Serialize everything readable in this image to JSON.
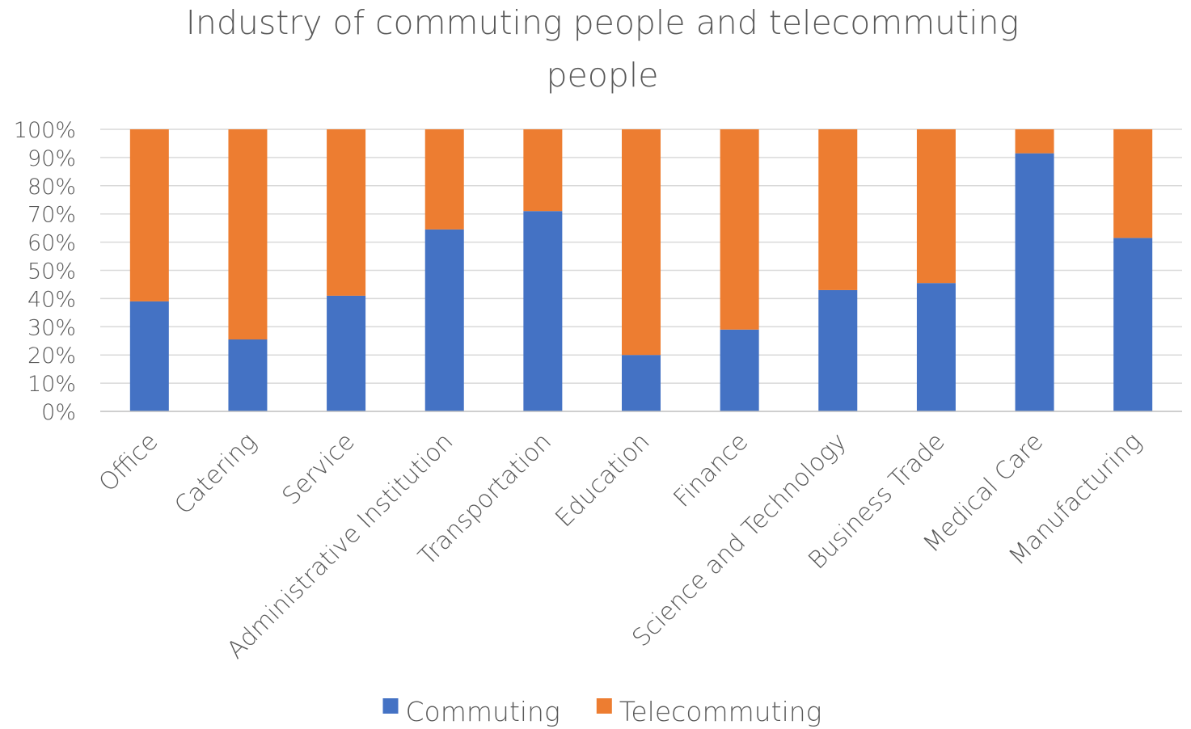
{
  "chart_data": {
    "type": "bar",
    "stacked": true,
    "percent_stacked": true,
    "title": "Industry of commuting people and telecommuting people",
    "title_lines": [
      "Industry of commuting people and telecommuting",
      "people"
    ],
    "xlabel": "",
    "ylabel": "",
    "ylim": [
      0,
      100
    ],
    "y_ticks": [
      "0%",
      "10%",
      "20%",
      "30%",
      "40%",
      "50%",
      "60%",
      "70%",
      "80%",
      "90%",
      "100%"
    ],
    "grid": true,
    "legend_position": "bottom",
    "categories": [
      "Office",
      "Catering",
      "Service",
      "Administrative Institution",
      "Transportation",
      "Education",
      "Finance",
      "Science and Technology",
      "Business Trade",
      "Medical Care",
      "Manufacturing"
    ],
    "series": [
      {
        "name": "Commuting",
        "color": "#4472c4",
        "values": [
          39,
          25.5,
          41,
          64.5,
          71,
          20,
          29,
          43,
          45.5,
          91.5,
          61.5
        ]
      },
      {
        "name": "Telecommuting",
        "color": "#ed7d31",
        "values": [
          61,
          74.5,
          59,
          35.5,
          29,
          80,
          71,
          57,
          54.5,
          8.5,
          38.5
        ]
      }
    ]
  }
}
